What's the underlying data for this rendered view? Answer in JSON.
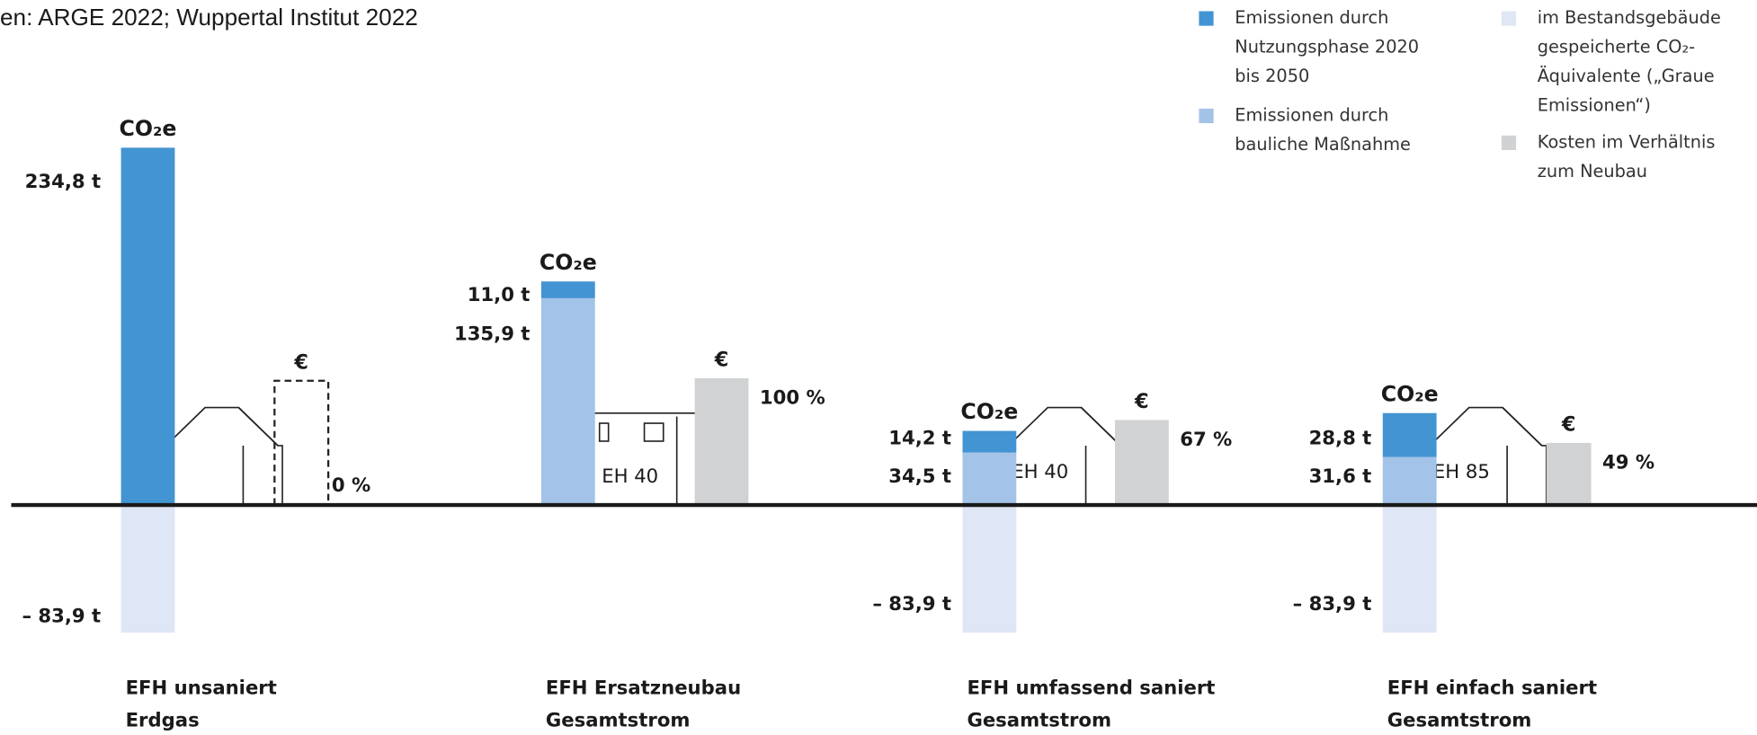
{
  "chart_data": {
    "type": "bar",
    "source": "en: ARGE 2022; Wuppertal Institut 2022",
    "co2_label": "CO₂e",
    "cost_symbol": "€",
    "categories": [
      [
        "EFH unsaniert",
        "Erdgas"
      ],
      [
        "EFH Ersatzneubau",
        "Gesamtstrom"
      ],
      [
        "EFH umfassend saniert",
        "Gesamtstrom"
      ],
      [
        "EFH einfach saniert",
        "Gesamtstrom"
      ]
    ],
    "house_labels": [
      null,
      "EH 40",
      "EH 40",
      "EH 85"
    ],
    "ylim": [
      -100,
      250
    ],
    "y2lim": [
      -120,
      300
    ],
    "series": [
      {
        "name": "Emissionen durch Nutzungsphase 2020 bis 2050",
        "color": "#4394d2",
        "values": [
          234.8,
          11.0,
          14.2,
          28.8
        ],
        "value_labels": [
          "234,8 t",
          "11,0 t",
          "14,2 t",
          "28,8 t"
        ]
      },
      {
        "name": "Emissionen durch bauliche Maßnahme",
        "color": "#a3c3e8",
        "values": [
          null,
          135.9,
          34.5,
          31.6
        ],
        "value_labels": [
          null,
          "135,9 t",
          "34,5 t",
          "31,6 t"
        ]
      },
      {
        "name": "im Bestandsgebäude gespeicherte CO₂-Äquivalente („Graue Emissionen“)",
        "color": "#dfe6f5",
        "values": [
          -83.9,
          null,
          -83.9,
          -83.9
        ],
        "value_labels": [
          "– 83,9 t",
          null,
          "– 83,9 t",
          "– 83,9 t"
        ]
      },
      {
        "name": "Kosten im Verhältnis zum Neubau",
        "color": "#d1d2d3",
        "axis": "y2",
        "values": [
          0,
          100,
          67,
          49
        ],
        "value_labels": [
          "0 %",
          "100 %",
          "67 %",
          "49 %"
        ]
      }
    ]
  }
}
